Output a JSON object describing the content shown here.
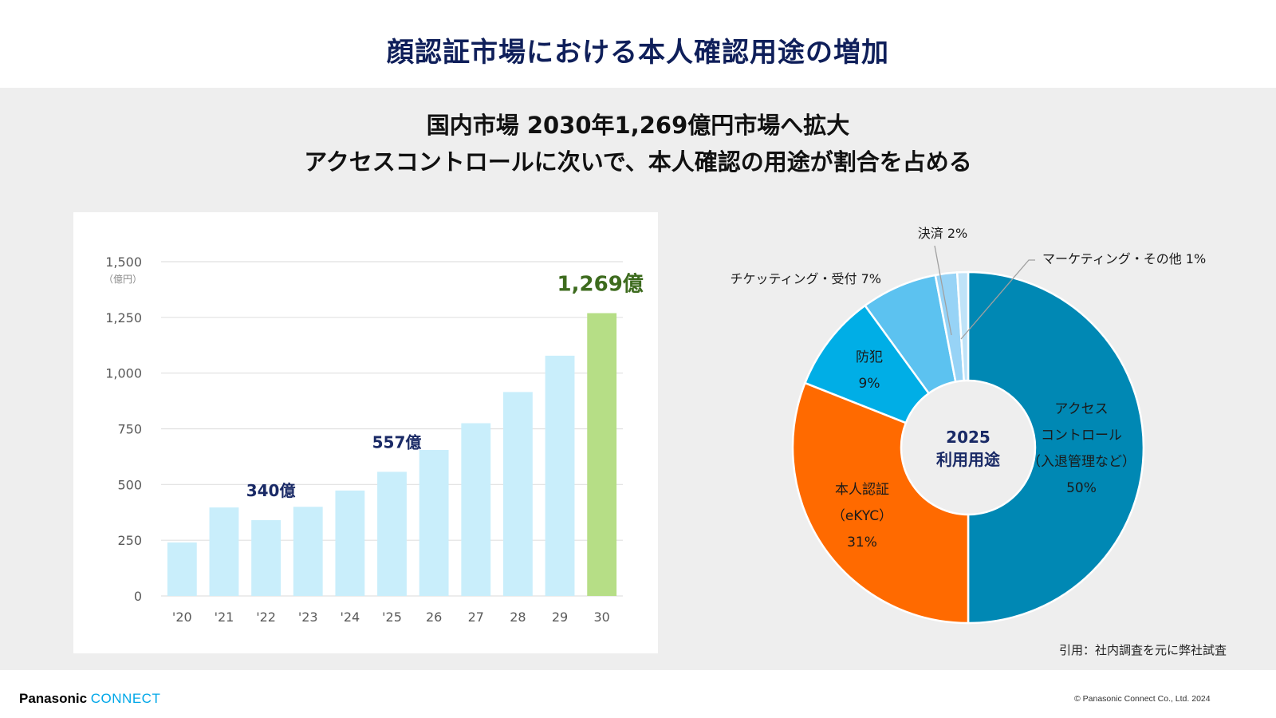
{
  "title": "顔認証市場における本人確認用途の増加",
  "subtitle": {
    "line1": "国内市場 2030年1,269億円市場へ拡大",
    "line2": "アクセスコントロールに次いで、本人確認の用途が割合を占める"
  },
  "colors": {
    "title": "#0f1f5a",
    "bar": "#c9eefb",
    "bar_highlight": "#b6de86",
    "highlight_label": "#3d6b1e",
    "annotation": "#1a2a66",
    "access": "#0088b4",
    "ekyc": "#ff6a00",
    "crime": "#00aee6",
    "ticketing": "#5cc2f0",
    "payment": "#97d3f6",
    "other": "#bfe3f8"
  },
  "chart_data": [
    {
      "type": "bar",
      "title": "",
      "xlabel": "",
      "ylabel": "（億円）",
      "unit_label": "（億円）",
      "categories": [
        "'20",
        "'21",
        "'22",
        "'23",
        "'24",
        "'25",
        "26",
        "27",
        "28",
        "29",
        "30"
      ],
      "values": [
        240,
        397,
        340,
        400,
        473,
        557,
        655,
        775,
        915,
        1078,
        1269
      ],
      "ylim": [
        0,
        1500
      ],
      "yticks": [
        0,
        250,
        500,
        750,
        1000,
        1250,
        1500
      ],
      "ytick_labels": [
        "0",
        "250",
        "500",
        "750",
        "1,000",
        "1,250",
        "1,500"
      ],
      "grid": true,
      "highlight_index": 10,
      "annotations": [
        {
          "index": 2,
          "text": "340億"
        },
        {
          "index": 5,
          "text": "557億"
        },
        {
          "index": 10,
          "text": "1,269億"
        }
      ]
    },
    {
      "type": "pie",
      "title": "2025 利用用途",
      "center_label": [
        "2025",
        "利用用途"
      ],
      "donut": true,
      "exploded": "本人認証",
      "slices": [
        {
          "key": "access",
          "label": "アクセスコントロール（入退管理など）",
          "label_lines": [
            "アクセス",
            "コントロール",
            "（入退管理など）",
            "50%"
          ],
          "value": 50
        },
        {
          "key": "ekyc",
          "label": "本人認証（eKYC）",
          "label_lines": [
            "本人認証",
            "（eKYC）",
            "31%"
          ],
          "value": 31
        },
        {
          "key": "crime",
          "label": "防犯",
          "label_lines": [
            "防犯",
            "9%"
          ],
          "value": 9
        },
        {
          "key": "ticketing",
          "label": "チケッティング・受付",
          "label_lines": [
            "チケッティング・受付 7%"
          ],
          "value": 7
        },
        {
          "key": "payment",
          "label": "決済",
          "label_lines": [
            "決済 2%"
          ],
          "value": 2
        },
        {
          "key": "other",
          "label": "マーケティング・その他",
          "label_lines": [
            "マーケティング・その他 1%"
          ],
          "value": 1
        }
      ]
    }
  ],
  "source_note": "引用：社内調査を元に弊社試査",
  "footer": {
    "logo_main": "Panasonic",
    "logo_sub": "CONNECT",
    "copyright": "© Panasonic Connect Co., Ltd. 2024"
  }
}
